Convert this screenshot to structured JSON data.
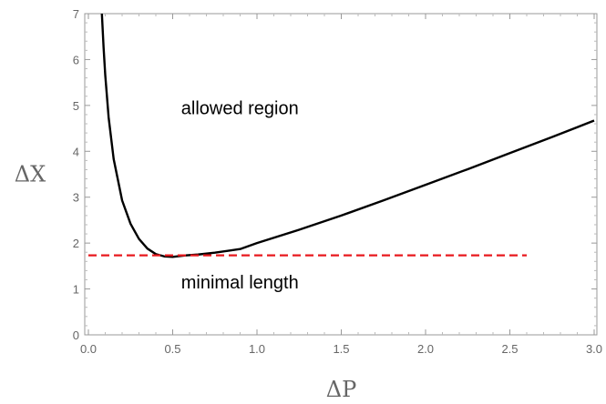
{
  "chart_data": {
    "type": "line",
    "title": "",
    "xlabel": "ΔP",
    "ylabel": "ΔX",
    "xlim": [
      0,
      3.0
    ],
    "ylim": [
      0,
      7
    ],
    "x_ticks": [
      "0.0",
      "0.5",
      "1.0",
      "1.5",
      "2.0",
      "2.5",
      "3.0"
    ],
    "y_ticks": [
      "0",
      "1",
      "2",
      "3",
      "4",
      "5",
      "6",
      "7"
    ],
    "grid": false,
    "series": [
      {
        "color": "#000000",
        "style": "solid",
        "x": [
          0.08,
          0.09,
          0.1,
          0.12,
          0.15,
          0.2,
          0.25,
          0.3,
          0.35,
          0.4,
          0.45,
          0.5,
          0.577,
          0.65,
          0.75,
          0.9,
          1.0,
          1.25,
          1.5,
          1.75,
          2.0,
          2.25,
          2.5,
          2.75,
          3.0
        ],
        "y": [
          7.0,
          6.27,
          5.66,
          4.74,
          3.83,
          2.93,
          2.42,
          2.09,
          1.88,
          1.76,
          1.71,
          1.7,
          1.732,
          1.75,
          1.79,
          1.87,
          2.0,
          2.29,
          2.6,
          2.93,
          3.27,
          3.61,
          3.96,
          4.31,
          4.67
        ]
      },
      {
        "color": "#e8191e",
        "style": "dashed",
        "x": [
          0.0,
          2.6
        ],
        "y": [
          1.732,
          1.732
        ]
      }
    ],
    "annotations": [
      {
        "text": "allowed region",
        "x": 0.55,
        "y": 4.95
      },
      {
        "text": "minimal length",
        "x": 0.55,
        "y": 1.15
      }
    ]
  }
}
